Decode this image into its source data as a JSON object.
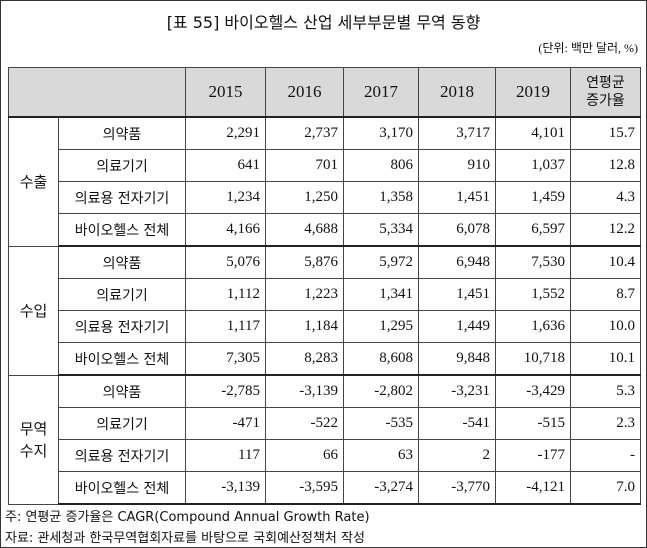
{
  "header": {
    "title": "[표 55] 바이오헬스 산업 세부부문별 무역 동향",
    "unit": "(단위: 백만 달러, %)"
  },
  "table": {
    "columns": [
      "2015",
      "2016",
      "2017",
      "2018",
      "2019"
    ],
    "cagr_header": [
      "연평균",
      "증가율"
    ],
    "groups": [
      {
        "label": [
          "수출"
        ],
        "rows": [
          {
            "name": "의약품",
            "values": [
              "2,291",
              "2,737",
              "3,170",
              "3,717",
              "4,101"
            ],
            "cagr": "15.7"
          },
          {
            "name": "의료기기",
            "values": [
              "641",
              "701",
              "806",
              "910",
              "1,037"
            ],
            "cagr": "12.8"
          },
          {
            "name": "의료용 전자기기",
            "values": [
              "1,234",
              "1,250",
              "1,358",
              "1,451",
              "1,459"
            ],
            "cagr": "4.3"
          },
          {
            "name": "바이오헬스 전체",
            "values": [
              "4,166",
              "4,688",
              "5,334",
              "6,078",
              "6,597"
            ],
            "cagr": "12.2"
          }
        ]
      },
      {
        "label": [
          "수입"
        ],
        "rows": [
          {
            "name": "의약품",
            "values": [
              "5,076",
              "5,876",
              "5,972",
              "6,948",
              "7,530"
            ],
            "cagr": "10.4"
          },
          {
            "name": "의료기기",
            "values": [
              "1,112",
              "1,223",
              "1,341",
              "1,451",
              "1,552"
            ],
            "cagr": "8.7"
          },
          {
            "name": "의료용 전자기기",
            "values": [
              "1,117",
              "1,184",
              "1,295",
              "1,449",
              "1,636"
            ],
            "cagr": "10.0"
          },
          {
            "name": "바이오헬스 전체",
            "values": [
              "7,305",
              "8,283",
              "8,608",
              "9,848",
              "10,718"
            ],
            "cagr": "10.1"
          }
        ]
      },
      {
        "label": [
          "무역",
          "수지"
        ],
        "rows": [
          {
            "name": "의약품",
            "values": [
              "-2,785",
              "-3,139",
              "-2,802",
              "-3,231",
              "-3,429"
            ],
            "cagr": "5.3"
          },
          {
            "name": "의료기기",
            "values": [
              "-471",
              "-522",
              "-535",
              "-541",
              "-515"
            ],
            "cagr": "2.3"
          },
          {
            "name": "의료용 전자기기",
            "values": [
              "117",
              "66",
              "63",
              "2",
              "-177"
            ],
            "cagr": "-"
          },
          {
            "name": "바이오헬스 전체",
            "values": [
              "-3,139",
              "-3,595",
              "-3,274",
              "-3,770",
              "-4,121"
            ],
            "cagr": "7.0"
          }
        ]
      }
    ]
  },
  "notes": [
    "주: 연평균 증가율은 CAGR(Compound Annual Growth Rate)",
    "자료: 관세청과 한국무역협회자료를 바탕으로 국회예산정책처 작성"
  ]
}
